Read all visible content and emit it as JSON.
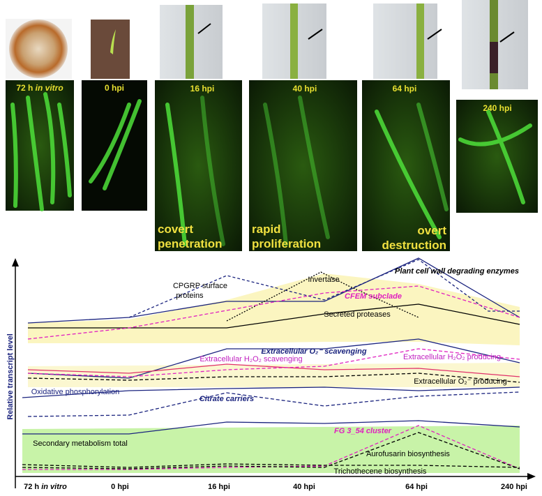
{
  "photos": [
    {
      "label": "72 h ",
      "label_italic": "in vitro"
    },
    {
      "label": "0 hpi"
    },
    {
      "label": "16 hpi",
      "stage_lines": [
        "covert",
        "penetration"
      ]
    },
    {
      "label": "40 hpi",
      "stage_lines": [
        "rapid",
        "proliferation"
      ]
    },
    {
      "label": "64 hpi",
      "stage_lines": [
        "overt",
        "destruction"
      ]
    },
    {
      "label": "240 hpi"
    }
  ],
  "chart": {
    "y_axis_label": "Relative transcript level",
    "x_labels": [
      {
        "label": "72 h ",
        "label_italic": "in vitro"
      },
      {
        "label": "0 hpi"
      },
      {
        "label": "16 hpi"
      },
      {
        "label": "40 hpi"
      },
      {
        "label": "64 hpi"
      },
      {
        "label": "240 hpi"
      }
    ],
    "annotations": {
      "cpgrp": [
        "CPGRP surface",
        "proteins"
      ],
      "invertase": "Invertase",
      "pcwde": "Plant cell wall degrading enzymes",
      "cfem": "CFEM subclade",
      "proteases": "Secreted proteases",
      "o2_scavenging": "Extracellular O₂⁻ scavenging",
      "h2o2_scavenging": "Extracellular H₂O₂ scavenging",
      "h2o2_producing": "Extracellular H₂O₂ producing",
      "o2_producing": "Extracellular O₂⁻ producing",
      "oxphos": "Oxidative phosphorylation",
      "citrate": "Citrate carriers",
      "secondary": "Secondary metabolism total",
      "fg354": "FG 3_54 cluster",
      "aurofusarin": "Aurofusarin biosynthesis",
      "trichothecene": "Trichothecene biosynthesis"
    }
  }
}
